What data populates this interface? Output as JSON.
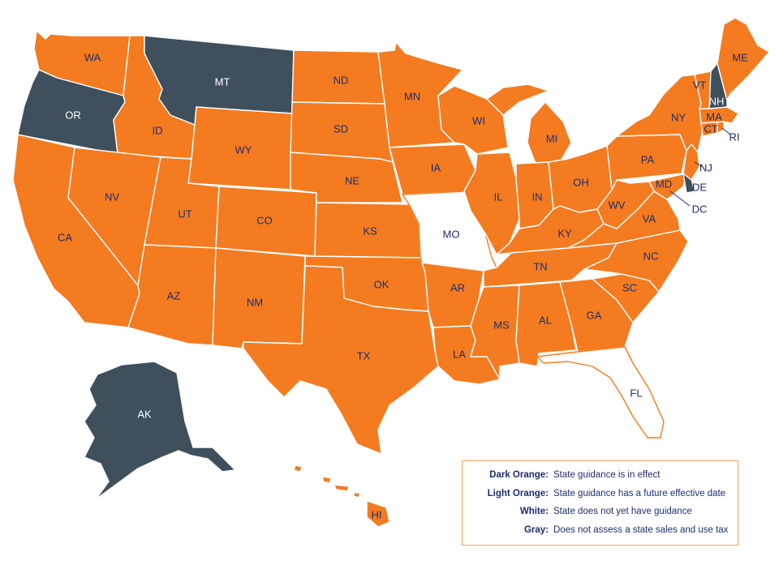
{
  "colors": {
    "dark_orange": "#f47b20",
    "gray": "#3f4f5c",
    "white": "#ffffff",
    "label": "#1f2d6b"
  },
  "states": {
    "WA": "WA",
    "OR": "OR",
    "CA": "CA",
    "ID": "ID",
    "NV": "NV",
    "MT": "MT",
    "WY": "WY",
    "UT": "UT",
    "AZ": "AZ",
    "CO": "CO",
    "NM": "NM",
    "ND": "ND",
    "SD": "SD",
    "NE": "NE",
    "KS": "KS",
    "OK": "OK",
    "TX": "TX",
    "MN": "MN",
    "IA": "IA",
    "MO": "MO",
    "AR": "AR",
    "LA": "LA",
    "WI": "WI",
    "IL": "IL",
    "MI": "MI",
    "IN": "IN",
    "OH": "OH",
    "KY": "KY",
    "TN": "TN",
    "MS": "MS",
    "AL": "AL",
    "GA": "GA",
    "FL": "FL",
    "SC": "SC",
    "NC": "NC",
    "VA": "VA",
    "WV": "WV",
    "PA": "PA",
    "NY": "NY",
    "ME": "ME",
    "VT": "VT",
    "NH": "NH",
    "MA": "MA",
    "CT": "CT",
    "RI": "RI",
    "NJ": "NJ",
    "DE": "DE",
    "MD": "MD",
    "DC": "DC",
    "AK": "AK",
    "HI": "HI"
  },
  "legend": {
    "dark_orange_key": "Dark Orange:",
    "dark_orange_text": "State guidance is in effect",
    "light_orange_key": "Light Orange:",
    "light_orange_text": "State guidance has a future effective date",
    "white_key": "White:",
    "white_text": "State does not yet have guidance",
    "gray_key": "Gray:",
    "gray_text": "Does not assess a state sales and use tax"
  }
}
